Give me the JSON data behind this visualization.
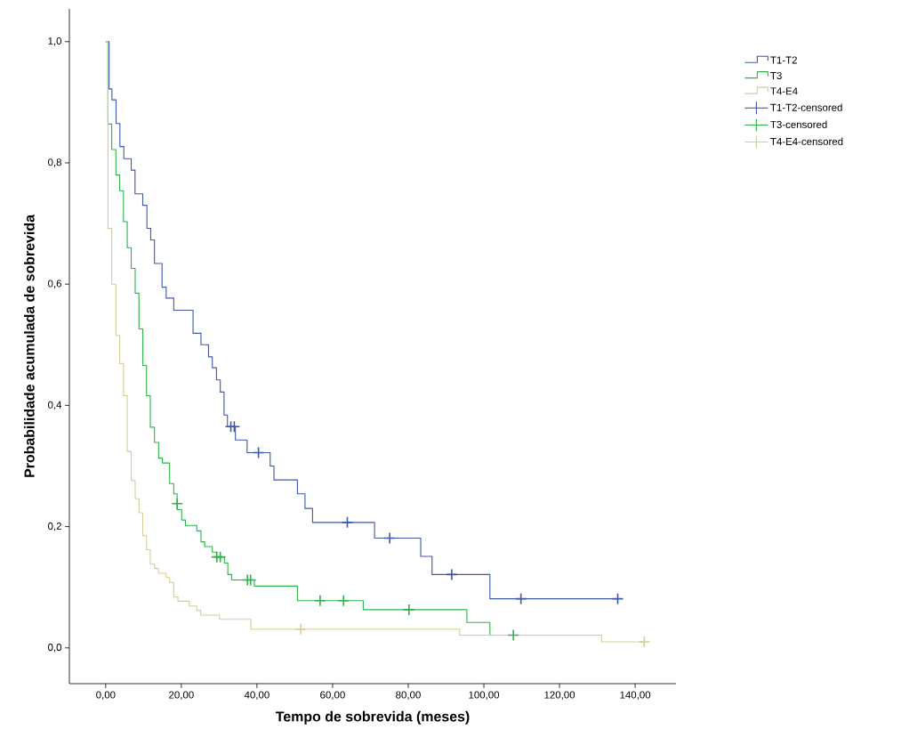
{
  "chart_data": {
    "type": "step",
    "xlabel": "Tempo de sobrevida (meses)",
    "ylabel": "Probabilidade acumulada de sobrevida",
    "xlim": [
      -9.6,
      150.8
    ],
    "ylim": [
      -0.059,
      1.054
    ],
    "xticks": [
      {
        "value": 0,
        "label": "0,00"
      },
      {
        "value": 20,
        "label": "20,00"
      },
      {
        "value": 40,
        "label": "40,00"
      },
      {
        "value": 60,
        "label": "60,00"
      },
      {
        "value": 80,
        "label": "80,00"
      },
      {
        "value": 100,
        "label": "100,00"
      },
      {
        "value": 120,
        "label": "120,00"
      },
      {
        "value": 140,
        "label": "140,00"
      }
    ],
    "yticks": [
      {
        "value": 0,
        "label": "0,0"
      },
      {
        "value": 0.2,
        "label": "0,2"
      },
      {
        "value": 0.4,
        "label": "0,4"
      },
      {
        "value": 0.6,
        "label": "0,6"
      },
      {
        "value": 0.8,
        "label": "0,8"
      },
      {
        "value": 1,
        "label": "1,0"
      }
    ],
    "legend": "top right",
    "grid": false,
    "series": [
      {
        "name": "T1-T2",
        "color": "#3e58ac",
        "x": [
          0,
          0.9,
          1.65,
          2.75,
          3.76,
          4.8,
          6.75,
          7.76,
          9.8,
          10.9,
          11.9,
          12.9,
          14.9,
          16.0,
          18.0,
          23.1,
          25.2,
          27.2,
          28.2,
          29.3,
          30.3,
          31.3,
          32.2,
          34.3,
          37.4,
          43.5,
          44.5,
          50.7,
          52.7,
          54.7,
          71.1,
          83.3,
          86.3,
          101.6,
          135.4
        ],
        "values": [
          1,
          0.922,
          0.904,
          0.865,
          0.827,
          0.807,
          0.788,
          0.749,
          0.73,
          0.692,
          0.673,
          0.634,
          0.595,
          0.577,
          0.557,
          0.519,
          0.5,
          0.48,
          0.462,
          0.442,
          0.422,
          0.384,
          0.365,
          0.343,
          0.322,
          0.3,
          0.277,
          0.254,
          0.23,
          0.207,
          0.181,
          0.151,
          0.121,
          0.081,
          0.081
        ]
      },
      {
        "name": "T3",
        "color": "#2db34a",
        "x": [
          0,
          0.6,
          1.6,
          2.7,
          3.7,
          4.7,
          5.7,
          6.75,
          7.8,
          8.8,
          9.8,
          10.8,
          11.8,
          12.9,
          14.0,
          15.0,
          16.9,
          18.0,
          18.9,
          20.1,
          21.1,
          24.1,
          25.2,
          26.2,
          28.2,
          29.3,
          31.4,
          32.3,
          33.3,
          39.3,
          50.7,
          68.1,
          95.5,
          101.6,
          107.8
        ],
        "values": [
          1,
          0.864,
          0.822,
          0.78,
          0.754,
          0.703,
          0.66,
          0.626,
          0.585,
          0.526,
          0.466,
          0.416,
          0.364,
          0.339,
          0.313,
          0.305,
          0.271,
          0.254,
          0.228,
          0.211,
          0.202,
          0.193,
          0.175,
          0.167,
          0.158,
          0.15,
          0.14,
          0.121,
          0.112,
          0.102,
          0.078,
          0.063,
          0.042,
          0.021,
          0.021
        ]
      },
      {
        "name": "T4-E4",
        "color": "#d3ce97",
        "x": [
          0,
          0.6,
          1.6,
          2.7,
          3.7,
          4.7,
          5.7,
          6.75,
          7.8,
          8.8,
          9.8,
          10.8,
          11.8,
          12.9,
          13.9,
          16.0,
          16.9,
          18.0,
          19.1,
          22.1,
          24.1,
          25.1,
          30.1,
          38.4,
          93.6,
          131.1,
          142.4
        ],
        "values": [
          1,
          0.692,
          0.6,
          0.515,
          0.469,
          0.416,
          0.324,
          0.276,
          0.246,
          0.223,
          0.185,
          0.162,
          0.138,
          0.131,
          0.123,
          0.116,
          0.108,
          0.084,
          0.077,
          0.069,
          0.062,
          0.054,
          0.047,
          0.031,
          0.021,
          0.01,
          0.01
        ]
      },
      {
        "name": "T1-T2-censored",
        "type": "scatter",
        "marker": "cross",
        "color": "#3e58ac",
        "x": [
          33.1,
          34.0,
          40.4,
          63.9,
          75.1,
          91.5,
          109.8,
          135.4
        ],
        "values": [
          0.365,
          0.365,
          0.322,
          0.207,
          0.181,
          0.121,
          0.081,
          0.081
        ]
      },
      {
        "name": "T3-censored",
        "type": "scatter",
        "marker": "cross",
        "color": "#2db34a",
        "x": [
          18.9,
          29.4,
          30.3,
          37.5,
          38.3,
          56.7,
          62.9,
          80.2,
          107.8
        ],
        "values": [
          0.238,
          0.15,
          0.15,
          0.112,
          0.112,
          0.078,
          0.078,
          0.063,
          0.021
        ]
      },
      {
        "name": "T4-E4-censored",
        "type": "scatter",
        "marker": "cross",
        "color": "#d3ce97",
        "x": [
          51.6,
          142.4
        ],
        "values": [
          0.031,
          0.01
        ]
      }
    ]
  }
}
